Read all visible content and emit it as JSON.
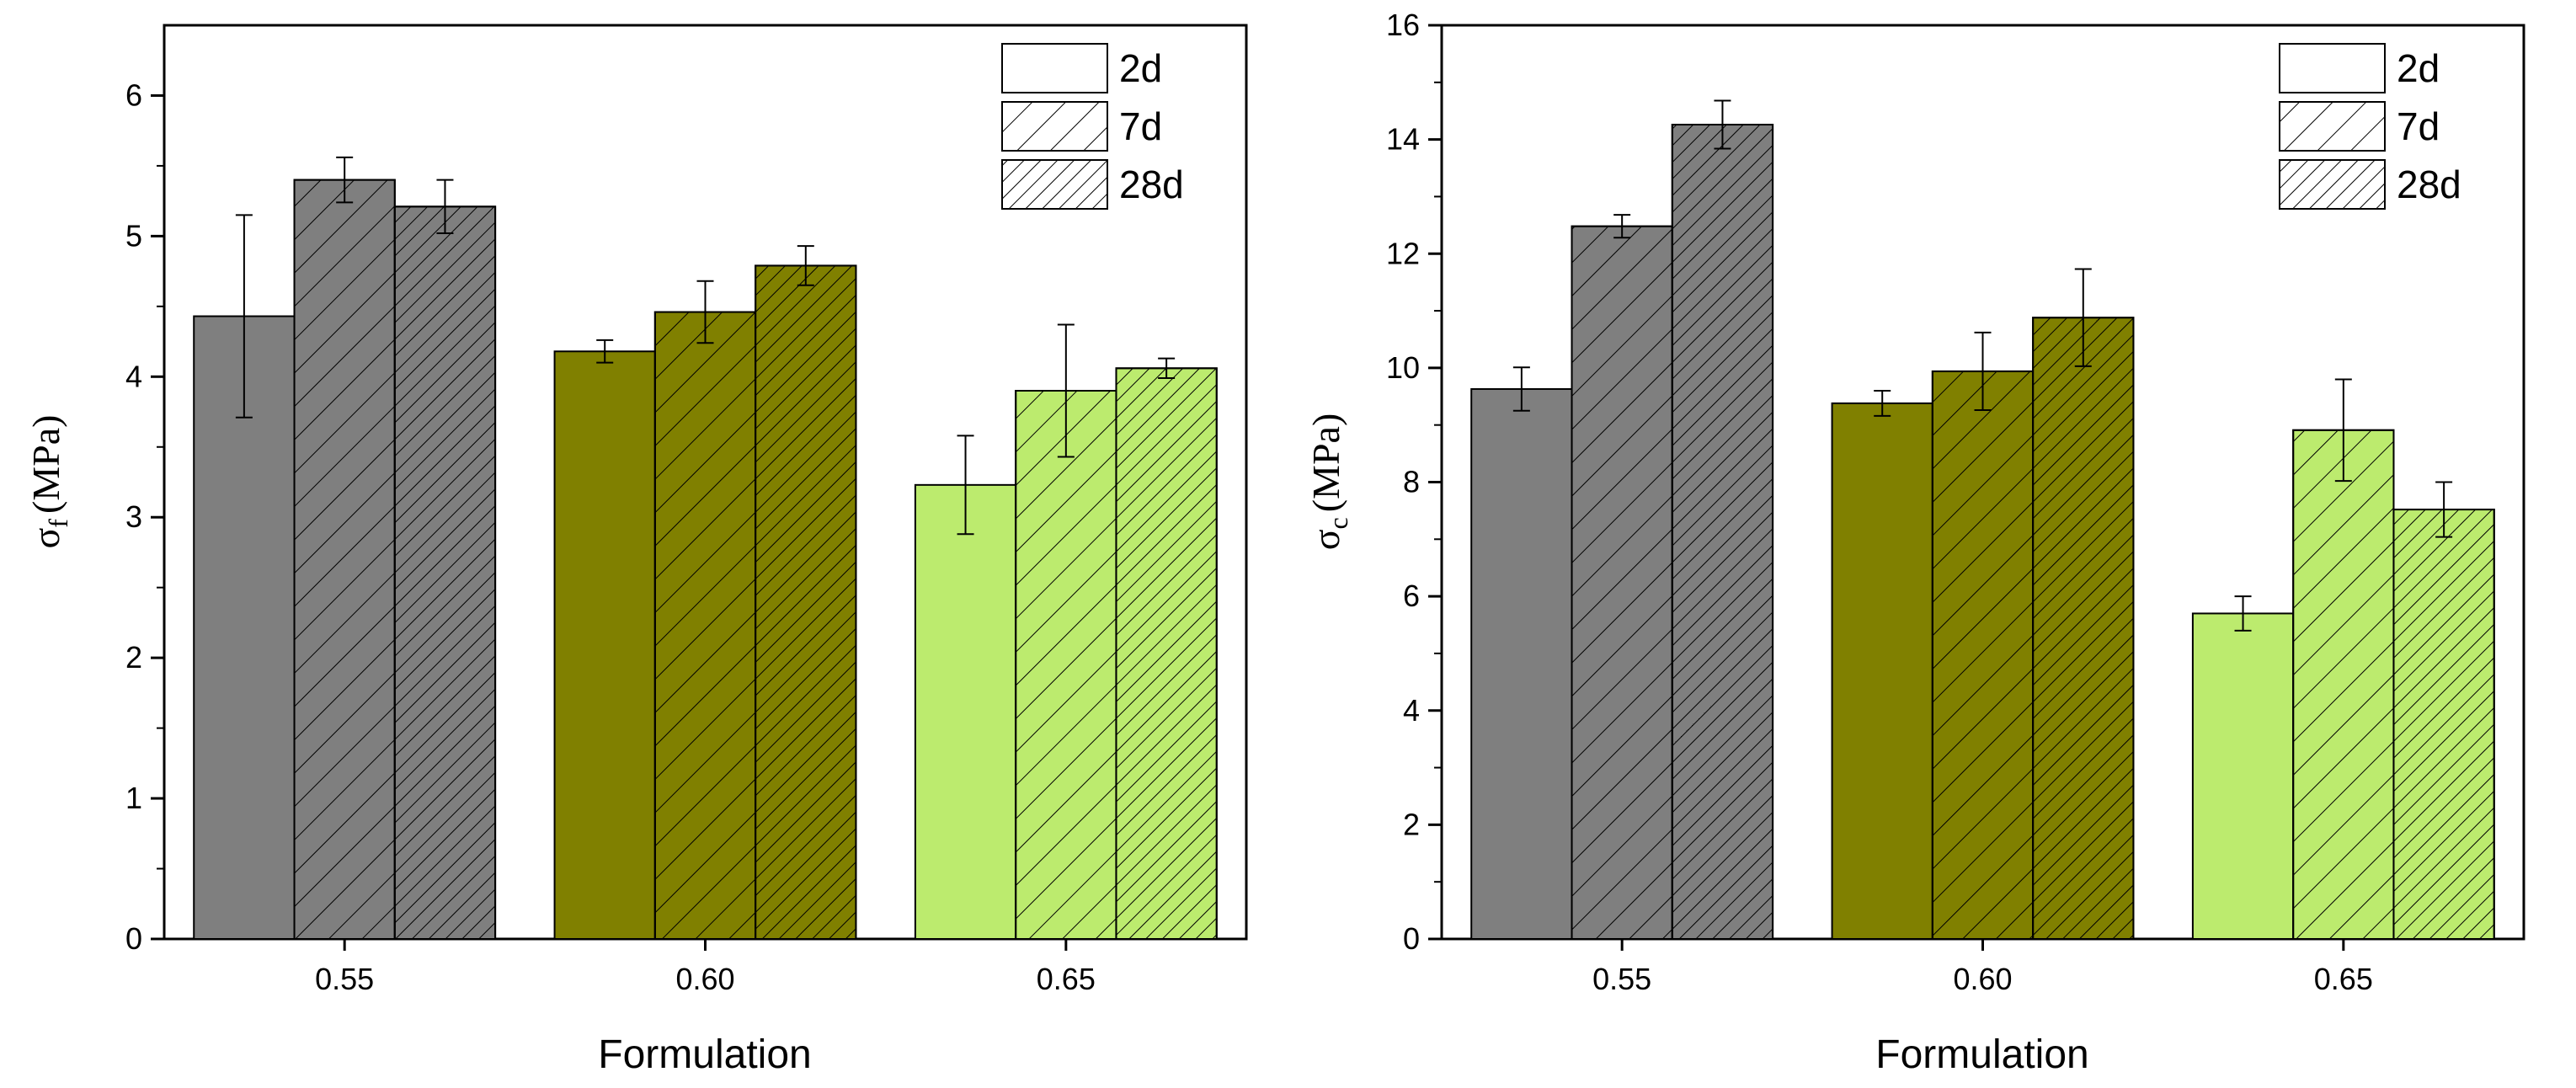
{
  "figure": {
    "colors": {
      "group_0.55": "#7f7f7f",
      "group_0.60": "#808000",
      "group_0.65": "#bceb6e"
    },
    "legend": [
      {
        "label": "2d",
        "pattern": "solid"
      },
      {
        "label": "7d",
        "pattern": "hatch-sparse"
      },
      {
        "label": "28d",
        "pattern": "hatch-dense"
      }
    ]
  },
  "chart_data": [
    {
      "type": "bar",
      "title": "",
      "xlabel": "Formulation",
      "ylabel_symbol": "σ",
      "ylabel_sub": "f",
      "ylabel_unit": "(MPa)",
      "categories": [
        "0.55",
        "0.60",
        "0.65"
      ],
      "series": [
        {
          "name": "2d",
          "values": [
            4.43,
            4.18,
            3.23
          ],
          "errors": [
            0.72,
            0.08,
            0.35
          ]
        },
        {
          "name": "7d",
          "values": [
            5.4,
            4.46,
            3.9
          ],
          "errors": [
            0.16,
            0.22,
            0.47
          ]
        },
        {
          "name": "28d",
          "values": [
            5.21,
            4.79,
            4.06
          ],
          "errors": [
            0.19,
            0.14,
            0.07
          ]
        }
      ],
      "ylim": [
        0,
        6.5
      ],
      "yticks": [
        "0",
        "1",
        "2",
        "3",
        "4",
        "5",
        "6"
      ],
      "grid": false,
      "legend_position": "top-right"
    },
    {
      "type": "bar",
      "title": "",
      "xlabel": "Formulation",
      "ylabel_symbol": "σ",
      "ylabel_sub": "c",
      "ylabel_unit": "(MPa)",
      "categories": [
        "0.55",
        "0.60",
        "0.65"
      ],
      "series": [
        {
          "name": "2d",
          "values": [
            9.63,
            9.38,
            5.7
          ],
          "errors": [
            0.38,
            0.22,
            0.3
          ]
        },
        {
          "name": "7d",
          "values": [
            12.48,
            9.94,
            8.91
          ],
          "errors": [
            0.2,
            0.68,
            0.89
          ]
        },
        {
          "name": "28d",
          "values": [
            14.26,
            10.88,
            7.52
          ],
          "errors": [
            0.42,
            0.85,
            0.48
          ]
        }
      ],
      "ylim": [
        0,
        16
      ],
      "yticks": [
        "0",
        "2",
        "4",
        "6",
        "8",
        "10",
        "12",
        "14",
        "16"
      ],
      "grid": false,
      "legend_position": "top-right"
    }
  ]
}
